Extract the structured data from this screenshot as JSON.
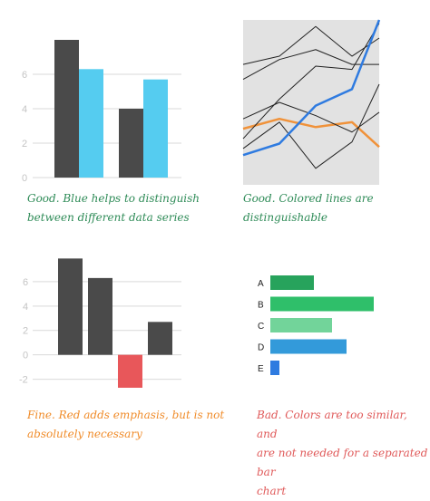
{
  "captions": {
    "bars_blue": "Good. Blue helps to distinguish\nbetween different data series",
    "lines_colored": "Good. Colored lines are\ndistinguishable",
    "bars_red": "Fine. Red adds emphasis, but is not\nabsolutely necessary",
    "hbar_colors": "Bad. Colors are too similar, and\nare not needed for a separated bar\nchart"
  },
  "colors": {
    "good_caption": "#2e8b57",
    "fine_caption": "#f08c2a",
    "bad_caption": "#e05a5a",
    "gray_bar": "#4a4a4a",
    "blue_bar": "#55ccf0",
    "red_bar": "#e8575a",
    "blue_line": "#2f7be0",
    "orange_line": "#f0923a",
    "black_line": "#222222",
    "plot_bg": "#e2e2e2",
    "gridline": "#d9d9d9"
  },
  "chart_data": [
    {
      "type": "bar",
      "categories": [
        "",
        ""
      ],
      "series": [
        {
          "values": [
            8.0,
            4.0
          ],
          "color": "#4a4a4a"
        },
        {
          "values": [
            6.3,
            5.7
          ],
          "color": "#55ccf0"
        }
      ],
      "yticks": [
        0,
        2,
        4,
        6
      ],
      "ylim": [
        0,
        8
      ],
      "grid": true
    },
    {
      "type": "line",
      "x": [
        0,
        1,
        2,
        3,
        4,
        5
      ],
      "ylim": [
        0,
        10
      ],
      "background": "#e2e2e2",
      "series": [
        {
          "values": [
            1.8,
            2.5,
            4.8,
            5.8,
            10.0,
            10.0
          ],
          "color": "#2f7be0",
          "emphasis": true
        },
        {
          "values": [
            3.4,
            4.0,
            3.5,
            3.8,
            2.3,
            2.3
          ],
          "color": "#f0923a"
        },
        {
          "values": [
            7.3,
            7.8,
            9.6,
            7.8,
            8.9,
            8.9
          ],
          "color": "#222222"
        },
        {
          "values": [
            6.4,
            7.6,
            8.2,
            7.3,
            7.3,
            7.3
          ],
          "color": "#222222"
        },
        {
          "values": [
            4.0,
            5.0,
            4.2,
            3.2,
            4.4,
            4.4
          ],
          "color": "#222222"
        },
        {
          "values": [
            2.2,
            3.8,
            1.0,
            2.6,
            6.1,
            6.1
          ],
          "color": "#222222"
        },
        {
          "values": [
            2.8,
            5.2,
            7.2,
            7.0,
            9.8,
            9.8
          ],
          "color": "#222222"
        }
      ]
    },
    {
      "type": "bar",
      "categories": [
        "",
        "",
        "",
        ""
      ],
      "values": [
        7.9,
        6.3,
        -2.7,
        2.7
      ],
      "colors": [
        "#4a4a4a",
        "#4a4a4a",
        "#e8575a",
        "#4a4a4a"
      ],
      "yticks": [
        -2,
        0,
        2,
        4,
        6
      ],
      "ylim": [
        -2.7,
        8
      ],
      "grid": true
    },
    {
      "type": "bar",
      "orientation": "horizontal",
      "categories": [
        "A",
        "B",
        "C",
        "D",
        "E"
      ],
      "values": [
        2.4,
        5.7,
        3.4,
        4.2,
        0.5
      ],
      "colors": [
        "#27a35c",
        "#2fbf6a",
        "#72d49a",
        "#339ada",
        "#2f7be0"
      ],
      "xlim": [
        0,
        5.7
      ]
    }
  ]
}
